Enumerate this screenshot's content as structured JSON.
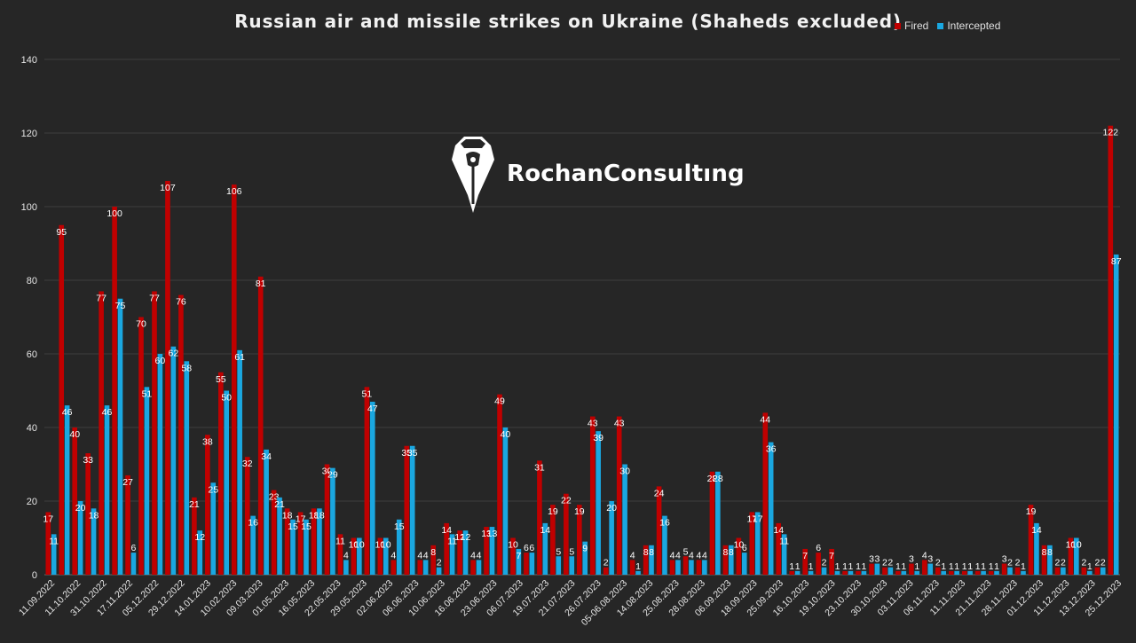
{
  "chart_data": {
    "type": "bar",
    "title": "Russian air and missile strikes on Ukraine (Shaheds excluded)",
    "ylim": [
      0,
      140
    ],
    "yticks": [
      0,
      20,
      40,
      60,
      80,
      100,
      120,
      140
    ],
    "grid": true,
    "legend_position": "top-right",
    "x_tick_labels": [
      "11.09.2022",
      "11.10.2022",
      "31.10.2022",
      "17.11.2022",
      "05.12.2022",
      "29.12.2022",
      "14.01.2023",
      "10.02.2023",
      "09.03.2023",
      "01.05.2023",
      "16.05.2023",
      "22.05.2023",
      "29.05.2023",
      "02.06.2023",
      "06.06.2023",
      "10.06.2023",
      "16.06.2023",
      "23.06.2023",
      "06.07.2023",
      "19.07.2023",
      "21.07.2023",
      "26.07.2023",
      "05-06.08.2023",
      "14.08.2023",
      "25.08.2023",
      "28.08.2023",
      "06.09.2023",
      "18.09.2023",
      "25.09.2023",
      "16.10.2023",
      "19.10.2023",
      "23.10.2023",
      "30.10.2023",
      "03.11.2023",
      "06.11.2023",
      "11.11.2023",
      "21.11.2023",
      "28.11.2023",
      "01.12.2023",
      "11.12.2023",
      "13.12.2023",
      "25.12.2023"
    ],
    "series": [
      {
        "name": "Fired",
        "color": "#c00000",
        "values": [
          17,
          95,
          40,
          33,
          77,
          100,
          27,
          70,
          77,
          107,
          76,
          21,
          38,
          55,
          106,
          32,
          81,
          23,
          18,
          17,
          18,
          30,
          11,
          10,
          51,
          10,
          4,
          35,
          4,
          8,
          14,
          12,
          4,
          13,
          49,
          10,
          6,
          31,
          19,
          22,
          19,
          43,
          2,
          43,
          4,
          8,
          24,
          4,
          5,
          4,
          28,
          8,
          10,
          17,
          44,
          14,
          1,
          7,
          6,
          7,
          1,
          1,
          3,
          2,
          1,
          3,
          4,
          2,
          1,
          1,
          1,
          1,
          3,
          2,
          19,
          8,
          2,
          10,
          2,
          2,
          122
        ]
      },
      {
        "name": "Intercepted",
        "color": "#1aa7e0",
        "values": [
          11,
          46,
          20,
          18,
          46,
          75,
          6,
          51,
          60,
          62,
          58,
          12,
          25,
          50,
          61,
          16,
          34,
          21,
          15,
          15,
          18,
          29,
          4,
          10,
          47,
          10,
          15,
          35,
          4,
          2,
          11,
          12,
          4,
          13,
          40,
          7,
          6,
          14,
          5,
          5,
          9,
          39,
          20,
          30,
          1,
          8,
          16,
          4,
          4,
          4,
          28,
          8,
          6,
          17,
          36,
          11,
          1,
          1,
          2,
          1,
          1,
          1,
          3,
          2,
          1,
          1,
          3,
          1,
          1,
          1,
          1,
          1,
          2,
          1,
          14,
          8,
          2,
          10,
          1,
          2,
          87
        ]
      }
    ]
  },
  "legend": {
    "fired_label": "Fired",
    "intercepted_label": "Intercepted"
  },
  "watermark": {
    "text": "RochanConsultıng",
    "icon": "helmet-pen-logo"
  }
}
